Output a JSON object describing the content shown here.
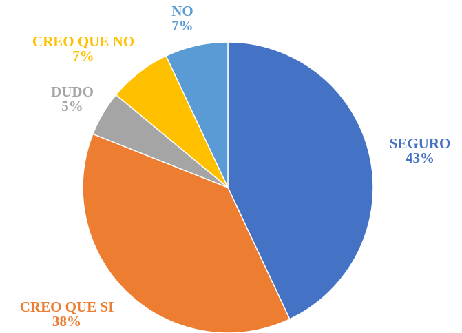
{
  "chart_data": {
    "type": "pie",
    "categories": [
      "SEGURO",
      "CREO QUE SI",
      "DUDO",
      "CREO QUE NO",
      "NO"
    ],
    "values": [
      43,
      38,
      5,
      7,
      7
    ],
    "value_labels": [
      "43%",
      "38%",
      "5%",
      "7%",
      "7%"
    ],
    "colors": [
      "#4472c4",
      "#ed7d31",
      "#a5a5a5",
      "#ffc000",
      "#5b9bd5"
    ]
  }
}
